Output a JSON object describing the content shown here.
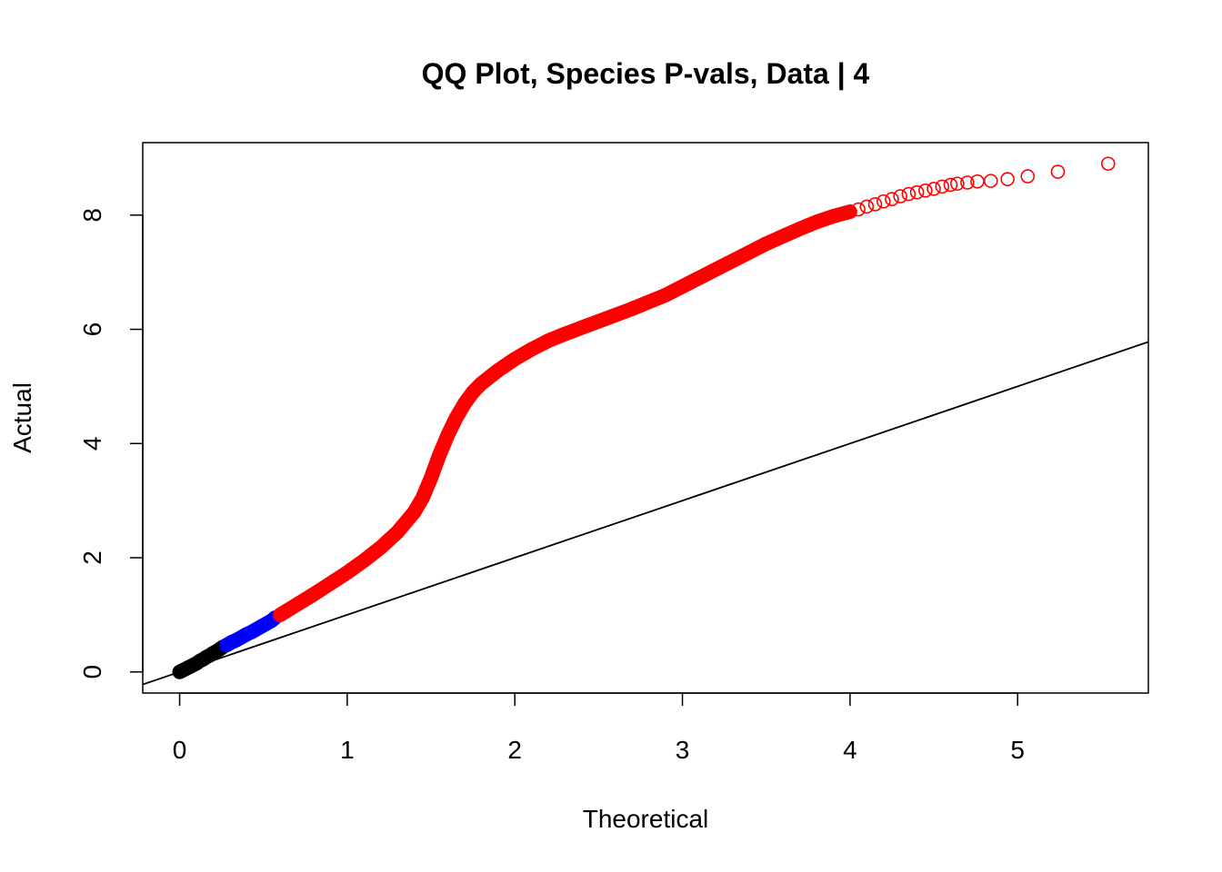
{
  "chart_data": {
    "type": "scatter",
    "title": "QQ Plot, Species P-vals, Data | 4",
    "xlabel": "Theoretical",
    "ylabel": "Actual",
    "xlim": [
      -0.22,
      5.78
    ],
    "ylim": [
      -0.37,
      9.27
    ],
    "xticks": [
      0,
      1,
      2,
      3,
      4,
      5
    ],
    "yticks": [
      0,
      2,
      4,
      6,
      8
    ],
    "grid": false,
    "legend": "none",
    "reference_line": {
      "intercept": 0,
      "slope": 1,
      "color": "#000000"
    },
    "series": [
      {
        "color": "#000000",
        "marker": "open-circle",
        "x": [
          0.0,
          0.02,
          0.04,
          0.06,
          0.08,
          0.1,
          0.12,
          0.14,
          0.16,
          0.18,
          0.2,
          0.22,
          0.24,
          0.26
        ],
        "y": [
          0.0,
          0.03,
          0.06,
          0.09,
          0.12,
          0.15,
          0.19,
          0.22,
          0.26,
          0.29,
          0.33,
          0.36,
          0.4,
          0.44
        ]
      },
      {
        "color": "#0000ff",
        "marker": "open-circle",
        "x": [
          0.28,
          0.31,
          0.34,
          0.37,
          0.4,
          0.43,
          0.46,
          0.49,
          0.52,
          0.55,
          0.57
        ],
        "y": [
          0.47,
          0.52,
          0.56,
          0.61,
          0.66,
          0.7,
          0.75,
          0.8,
          0.85,
          0.9,
          0.95
        ]
      },
      {
        "color": "#ff0000",
        "marker": "open-circle",
        "x": [
          0.6,
          0.7,
          0.8,
          0.9,
          1.0,
          1.1,
          1.2,
          1.3,
          1.4,
          1.45,
          1.5,
          1.55,
          1.6,
          1.65,
          1.7,
          1.75,
          1.8,
          1.9,
          2.0,
          2.1,
          2.2,
          2.3,
          2.4,
          2.5,
          2.6,
          2.7,
          2.8,
          2.9,
          3.0,
          3.1,
          3.2,
          3.3,
          3.4,
          3.5,
          3.6,
          3.7,
          3.8,
          3.9,
          4.0,
          4.05,
          4.1,
          4.15,
          4.2,
          4.25,
          4.3,
          4.35,
          4.4,
          4.45,
          4.5,
          4.55,
          4.6,
          4.64,
          4.7,
          4.76,
          4.84,
          4.94,
          5.06,
          5.24,
          5.54
        ],
        "y": [
          1.0,
          1.18,
          1.36,
          1.55,
          1.74,
          1.95,
          2.18,
          2.45,
          2.8,
          3.05,
          3.4,
          3.8,
          4.15,
          4.45,
          4.7,
          4.9,
          5.05,
          5.28,
          5.48,
          5.65,
          5.8,
          5.92,
          6.03,
          6.14,
          6.25,
          6.36,
          6.48,
          6.6,
          6.75,
          6.9,
          7.05,
          7.2,
          7.35,
          7.5,
          7.63,
          7.76,
          7.88,
          7.98,
          8.06,
          8.1,
          8.15,
          8.19,
          8.24,
          8.28,
          8.33,
          8.37,
          8.4,
          8.43,
          8.46,
          8.5,
          8.53,
          8.55,
          8.57,
          8.59,
          8.6,
          8.63,
          8.68,
          8.76,
          8.9
        ]
      }
    ]
  }
}
